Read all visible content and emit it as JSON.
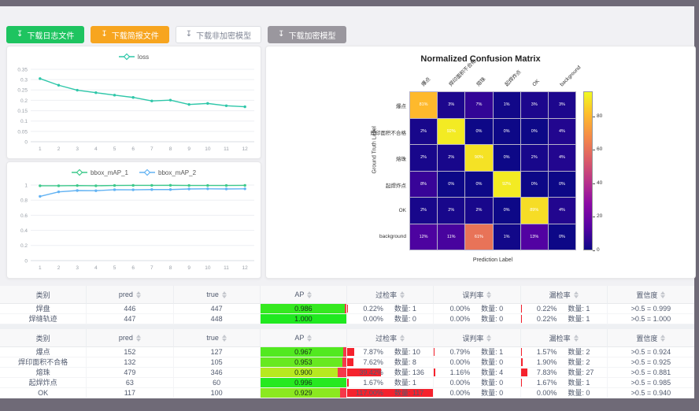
{
  "frame": {
    "chrome_color": "#6f6a77",
    "content_bg": "#f1f1f4"
  },
  "toolbar": {
    "download_icon": "↧",
    "buttons": [
      {
        "id": "download-log",
        "label": "下载日志文件",
        "bg": "#1ec460",
        "fg": "#ffffff",
        "border": "#1ec460"
      },
      {
        "id": "download-report",
        "label": "下载简报文件",
        "bg": "#f7a51f",
        "fg": "#ffffff",
        "border": "#f7a51f"
      },
      {
        "id": "download-unencrypted-model",
        "label": "下载非加密模型",
        "bg": "#ffffff",
        "fg": "#808695",
        "border": "#dcdee2"
      },
      {
        "id": "download-encrypted-model",
        "label": "下载加密模型",
        "bg": "#9a979e",
        "fg": "#ffffff",
        "border": "#9a979e"
      }
    ]
  },
  "chart_data": [
    {
      "type": "line",
      "name": "loss-chart",
      "title": "",
      "x": [
        1,
        2,
        3,
        4,
        5,
        6,
        7,
        8,
        9,
        10,
        11,
        12
      ],
      "ylim": [
        0,
        0.35
      ],
      "yticks": [
        0,
        0.05,
        0.1,
        0.15,
        0.2,
        0.25,
        0.3,
        0.35
      ],
      "grid": true,
      "legend_position": "top",
      "series": [
        {
          "name": "loss",
          "color": "#2fc7a9",
          "values": [
            0.305,
            0.273,
            0.249,
            0.237,
            0.225,
            0.214,
            0.197,
            0.201,
            0.18,
            0.185,
            0.174,
            0.169
          ]
        }
      ]
    },
    {
      "type": "line",
      "name": "map-chart",
      "title": "",
      "x": [
        1,
        2,
        3,
        4,
        5,
        6,
        7,
        8,
        9,
        10,
        11,
        12
      ],
      "ylim": [
        0,
        1
      ],
      "yticks": [
        0,
        0.2,
        0.4,
        0.6,
        0.8,
        1
      ],
      "grid": true,
      "legend_position": "top",
      "series": [
        {
          "name": "bbox_mAP_1",
          "color": "#3dc98b",
          "values": [
            0.99,
            0.99,
            0.993,
            0.99,
            0.994,
            0.995,
            0.995,
            0.996,
            0.994,
            0.994,
            0.994,
            0.995
          ]
        },
        {
          "name": "bbox_mAP_2",
          "color": "#63b3f3",
          "values": [
            0.85,
            0.91,
            0.927,
            0.925,
            0.938,
            0.937,
            0.94,
            0.94,
            0.948,
            0.95,
            0.948,
            0.95
          ]
        }
      ]
    },
    {
      "type": "heatmap",
      "name": "confusion-matrix",
      "title": "Normalized Confusion Matrix",
      "xlabel": "Prediction Label",
      "ylabel": "Ground Truth Label",
      "labels": [
        "爆点",
        "焊印面积不合格",
        "熔珠",
        "起焊炸点",
        "OK",
        "background"
      ],
      "matrix": [
        [
          81,
          3,
          7,
          1,
          3,
          3
        ],
        [
          2,
          92,
          0,
          0,
          0,
          4
        ],
        [
          2,
          2,
          90,
          0,
          2,
          4
        ],
        [
          8,
          0,
          0,
          92,
          0,
          0
        ],
        [
          2,
          2,
          2,
          0,
          89,
          4
        ],
        [
          12,
          11,
          61,
          1,
          13,
          0
        ]
      ],
      "value_suffix": "%",
      "colormap": "plasma",
      "scale_max": 95,
      "colorbar_ticks": [
        0,
        20,
        40,
        60,
        80
      ]
    }
  ],
  "tables": {
    "count_label": "数量:",
    "headers": [
      {
        "key": "category",
        "label": "类别",
        "sortable": false
      },
      {
        "key": "pred",
        "label": "pred",
        "sortable": true
      },
      {
        "key": "true",
        "label": "true",
        "sortable": true
      },
      {
        "key": "ap",
        "label": "AP",
        "sortable": true
      },
      {
        "key": "over-rate",
        "label": "过检率",
        "sortable": true
      },
      {
        "key": "misjudge",
        "label": "误判率",
        "sortable": true
      },
      {
        "key": "miss-rate",
        "label": "漏检率",
        "sortable": true
      },
      {
        "key": "confidence",
        "label": "置信度",
        "sortable": true
      }
    ],
    "groups": [
      {
        "rows": [
          {
            "label": "焊盘",
            "pred": 446,
            "true": 447,
            "ap": 0.986,
            "over_rate": "0.22%",
            "over_count": 1,
            "over_pct": 0.22,
            "mis_rate": "0.00%",
            "mis_count": 0,
            "mis_pct": 0,
            "miss_rate": "0.22%",
            "miss_count": 1,
            "miss_pct": 0.22,
            "confidence": ">0.5 = 0.999"
          },
          {
            "label": "焊缝轨迹",
            "pred": 447,
            "true": 448,
            "ap": 1.0,
            "over_rate": "0.00%",
            "over_count": 0,
            "over_pct": 0,
            "mis_rate": "0.00%",
            "mis_count": 0,
            "mis_pct": 0,
            "miss_rate": "0.22%",
            "miss_count": 1,
            "miss_pct": 0.22,
            "confidence": ">0.5 = 1.000"
          }
        ]
      },
      {
        "rows": [
          {
            "label": "爆点",
            "pred": 152,
            "true": 127,
            "ap": 0.967,
            "over_rate": "7.87%",
            "over_count": 10,
            "over_pct": 7.87,
            "mis_rate": "0.79%",
            "mis_count": 1,
            "mis_pct": 0.79,
            "miss_rate": "1.57%",
            "miss_count": 2,
            "miss_pct": 1.57,
            "confidence": ">0.5 = 0.924"
          },
          {
            "label": "焊印面积不合格",
            "pred": 132,
            "true": 105,
            "ap": 0.953,
            "over_rate": "7.62%",
            "over_count": 8,
            "over_pct": 7.62,
            "mis_rate": "0.00%",
            "mis_count": 0,
            "mis_pct": 0,
            "miss_rate": "1.90%",
            "miss_count": 2,
            "miss_pct": 1.9,
            "confidence": ">0.5 = 0.925"
          },
          {
            "label": "熔珠",
            "pred": 479,
            "true": 346,
            "ap": 0.9,
            "over_rate": "39.42%",
            "over_count": 136,
            "over_pct": 39.42,
            "mis_rate": "1.16%",
            "mis_count": 4,
            "mis_pct": 1.16,
            "miss_rate": "7.83%",
            "miss_count": 27,
            "miss_pct": 7.83,
            "confidence": ">0.5 = 0.881"
          },
          {
            "label": "起焊炸点",
            "pred": 63,
            "true": 60,
            "ap": 0.996,
            "over_rate": "1.67%",
            "over_count": 1,
            "over_pct": 1.67,
            "mis_rate": "0.00%",
            "mis_count": 0,
            "mis_pct": 0,
            "miss_rate": "1.67%",
            "miss_count": 1,
            "miss_pct": 1.67,
            "confidence": ">0.5 = 0.985"
          },
          {
            "label": "OK",
            "pred": 117,
            "true": 100,
            "ap": 0.929,
            "over_rate": "117.00%",
            "over_count": 117,
            "over_pct": 117,
            "mis_rate": "0.00%",
            "mis_count": 0,
            "mis_pct": 0,
            "miss_rate": "0.00%",
            "miss_count": 0,
            "miss_pct": 0,
            "confidence": ">0.5 = 0.940"
          }
        ]
      }
    ]
  }
}
